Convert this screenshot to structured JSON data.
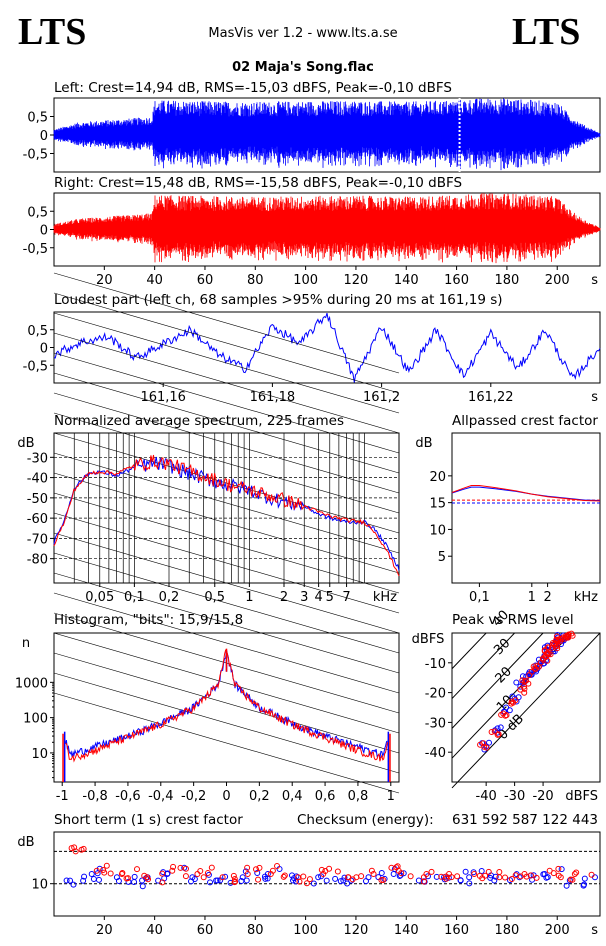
{
  "header": {
    "logo_left": "LTS",
    "logo_right": "LTS",
    "app_title": "MasVis ver 1.2 - www.lts.a.se",
    "file_name": "02 Maja's Song.flac"
  },
  "panels": {
    "left_wave": {
      "label": "Left: Crest=14,94 dB, RMS=-15,03 dBFS, Peak=-0,10 dBFS"
    },
    "right_wave": {
      "label": "Right: Crest=15,48 dB, RMS=-15,58 dBFS, Peak=-0,10 dBFS"
    },
    "loudest": {
      "label": "Loudest part (left  ch, 68 samples >95% during 20 ms at 161,19 s)"
    },
    "spectrum": {
      "label": "Normalized average spectrum, 225 frames"
    },
    "allpass": {
      "label": "Allpassed crest factor"
    },
    "histogram": {
      "label": "Histogram, \"bits\": 15,9/15,8"
    },
    "peakrms": {
      "label": "Peak vs RMS level"
    },
    "shortcrest": {
      "label": "Short term (1 s) crest factor"
    },
    "checksum": {
      "label": "Checksum (energy):",
      "value": "631 592 587 122 443"
    }
  },
  "colors": {
    "left": "#0000ff",
    "right": "#ff0000",
    "grid": "#000000"
  },
  "chart_data": [
    {
      "id": "left_wave",
      "type": "line",
      "title": "Left: Crest=14,94 dB, RMS=-15,03 dBFS, Peak=-0,10 dBFS",
      "xlabel": "s",
      "xlim": [
        0,
        217
      ],
      "ylim": [
        -1,
        1
      ],
      "yticks": [
        "0,5",
        "0",
        "-0,5"
      ],
      "ytick_values": [
        0.5,
        0,
        -0.5
      ],
      "marker_x": 161.19,
      "envelope": {
        "x": [
          0,
          10,
          20,
          30,
          39,
          40,
          60,
          80,
          100,
          120,
          140,
          160,
          170,
          180,
          200,
          205,
          210,
          217
        ],
        "amp": [
          0.15,
          0.35,
          0.4,
          0.45,
          0.5,
          0.95,
          0.92,
          0.9,
          0.92,
          0.93,
          0.9,
          0.95,
          1.0,
          1.0,
          0.9,
          0.55,
          0.3,
          0.05
        ]
      },
      "series": [
        {
          "name": "",
          "color": "#0000ff"
        }
      ]
    },
    {
      "id": "right_wave",
      "type": "line",
      "title": "Right: Crest=15,48 dB, RMS=-15,58 dBFS, Peak=-0,10 dBFS",
      "xlabel": "s",
      "xlim": [
        0,
        217
      ],
      "ylim": [
        -1,
        1
      ],
      "xticks": [
        20,
        40,
        60,
        80,
        100,
        120,
        140,
        160,
        180,
        200
      ],
      "yticks": [
        "0,5",
        "0",
        "-0,5"
      ],
      "ytick_values": [
        0.5,
        0,
        -0.5
      ],
      "envelope": {
        "x": [
          0,
          10,
          20,
          30,
          39,
          40,
          60,
          80,
          100,
          120,
          140,
          160,
          170,
          180,
          200,
          205,
          210,
          217
        ],
        "amp": [
          0.15,
          0.3,
          0.35,
          0.4,
          0.45,
          0.95,
          0.92,
          0.9,
          0.92,
          0.93,
          0.9,
          0.95,
          1.0,
          1.0,
          0.9,
          0.55,
          0.3,
          0.05
        ]
      },
      "series": [
        {
          "name": "",
          "color": "#ff0000"
        }
      ]
    },
    {
      "id": "loudest",
      "type": "line",
      "title": "Loudest part (left  ch, 68 samples >95% during 20 ms at 161,19 s)",
      "xlabel": "s",
      "xlim": [
        161.14,
        161.24
      ],
      "ylim": [
        -1,
        1
      ],
      "xticks": [
        "161,16",
        "161,18",
        "161,2",
        "161,22"
      ],
      "xtick_values": [
        161.16,
        161.18,
        161.2,
        161.22
      ],
      "yticks": [
        "0,5",
        "0",
        "-0,5"
      ],
      "ytick_values": [
        0.5,
        0,
        -0.5
      ],
      "x": [
        161.14,
        161.145,
        161.15,
        161.155,
        161.16,
        161.165,
        161.17,
        161.175,
        161.18,
        161.185,
        161.19,
        161.195,
        161.2,
        161.205,
        161.21,
        161.215,
        161.22,
        161.225,
        161.23,
        161.235,
        161.24
      ],
      "y": [
        -0.2,
        0.15,
        0.3,
        -0.3,
        0.1,
        0.5,
        -0.2,
        -0.6,
        0.6,
        0.1,
        0.95,
        -0.9,
        0.6,
        -0.7,
        0.5,
        -0.8,
        0.4,
        -0.6,
        0.5,
        -0.9,
        0.0
      ],
      "series": [
        {
          "name": "",
          "color": "#0000ff"
        }
      ]
    },
    {
      "id": "spectrum",
      "type": "line",
      "title": "Normalized average spectrum, 225 frames",
      "ylabel": "dB",
      "xlabel": "kHz",
      "xscale": "log",
      "xlim": [
        0.02,
        20
      ],
      "ylim": [
        -92,
        -18
      ],
      "xticks": [
        "0,05",
        "0,1",
        "0,2",
        "0,5",
        "1",
        "2",
        "3",
        "4",
        "5",
        "7"
      ],
      "xtick_values": [
        0.05,
        0.1,
        0.2,
        0.5,
        1,
        2,
        3,
        4,
        5,
        7
      ],
      "yticks": [
        "-30",
        "-40",
        "-50",
        "-60",
        "-70",
        "-80"
      ],
      "ytick_values": [
        -30,
        -40,
        -50,
        -60,
        -70,
        -80
      ],
      "x": [
        0.02,
        0.025,
        0.03,
        0.04,
        0.05,
        0.07,
        0.1,
        0.15,
        0.2,
        0.3,
        0.5,
        0.7,
        1,
        1.5,
        2,
        3,
        4,
        5,
        7,
        10,
        12,
        15,
        20
      ],
      "series": [
        {
          "name": "",
          "color": "#0000ff",
          "values": [
            -72,
            -60,
            -45,
            -38,
            -37,
            -39,
            -35,
            -33,
            -34,
            -38,
            -42,
            -44,
            -46,
            -50,
            -52,
            -54,
            -58,
            -60,
            -62,
            -62,
            -65,
            -72,
            -85
          ]
        },
        {
          "name": "",
          "color": "#ff0000",
          "values": [
            -73,
            -61,
            -46,
            -38,
            -37,
            -38,
            -34,
            -32,
            -33,
            -37,
            -41,
            -44,
            -46,
            -49,
            -51,
            -54,
            -57,
            -59,
            -61,
            -62,
            -66,
            -74,
            -88
          ]
        }
      ]
    },
    {
      "id": "allpass",
      "type": "line",
      "title": "Allpassed crest factor",
      "ylabel": "dB",
      "xlabel": "kHz",
      "xscale": "log",
      "xlim": [
        0.03,
        20
      ],
      "ylim": [
        0,
        28
      ],
      "xticks": [
        "0,1",
        "1",
        "2"
      ],
      "xtick_values": [
        0.1,
        1,
        2
      ],
      "yticks": [
        "20",
        "15",
        "10",
        "5"
      ],
      "ytick_values": [
        20,
        15,
        10,
        5
      ],
      "reference_lines": [
        14.94,
        15.48
      ],
      "x": [
        0.03,
        0.05,
        0.07,
        0.1,
        0.2,
        0.5,
        1,
        2,
        5,
        10,
        20
      ],
      "series": [
        {
          "name": "",
          "color": "#0000ff",
          "values": [
            16.8,
            17.5,
            17.9,
            17.9,
            17.6,
            17.1,
            16.6,
            16.2,
            15.8,
            15.5,
            15.4
          ]
        },
        {
          "name": "",
          "color": "#ff0000",
          "values": [
            16.9,
            17.7,
            18.2,
            18.2,
            17.8,
            17.2,
            16.6,
            16.1,
            15.7,
            15.4,
            15.3
          ]
        }
      ]
    },
    {
      "id": "histogram",
      "type": "line",
      "title": "Histogram, \"bits\": 15,9/15,8",
      "ylabel": "n",
      "yscale": "log",
      "ylim": [
        1.5,
        25000
      ],
      "xlim": [
        -1.05,
        1.05
      ],
      "xticks": [
        "-1",
        "-0,8",
        "-0,6",
        "-0,4",
        "-0,2",
        "0",
        "0,2",
        "0,4",
        "0,6",
        "0,8",
        "1"
      ],
      "xtick_values": [
        -1,
        -0.8,
        -0.6,
        -0.4,
        -0.2,
        0,
        0.2,
        0.4,
        0.6,
        0.8,
        1
      ],
      "yticks": [
        "1000",
        "100",
        "10"
      ],
      "ytick_values": [
        1000,
        100,
        10
      ],
      "x": [
        -1,
        -0.95,
        -0.8,
        -0.6,
        -0.4,
        -0.2,
        -0.05,
        0,
        0.05,
        0.2,
        0.4,
        0.6,
        0.8,
        0.95,
        1
      ],
      "series": [
        {
          "name": "",
          "color": "#0000ff",
          "values": [
            40,
            9,
            15,
            30,
            70,
            200,
            900,
            8000,
            900,
            200,
            70,
            30,
            15,
            9,
            40
          ]
        },
        {
          "name": "",
          "color": "#ff0000",
          "values": [
            35,
            7,
            12,
            28,
            65,
            190,
            850,
            9000,
            850,
            190,
            65,
            28,
            12,
            7,
            35
          ]
        }
      ]
    },
    {
      "id": "peakrms",
      "type": "scatter",
      "title": "Peak vs RMS level",
      "ylabel": "dBFS",
      "xlabel": "dBFS",
      "xlim": [
        -52,
        0
      ],
      "ylim": [
        -50,
        0
      ],
      "xticks": [
        "-40",
        "-30",
        "-20"
      ],
      "xtick_values": [
        -40,
        -30,
        -20
      ],
      "yticks": [
        "-10",
        "-20",
        "-30",
        "-40"
      ],
      "ytick_values": [
        -10,
        -20,
        -30,
        -40
      ],
      "diagonal_labels": [
        "40",
        "30",
        "20",
        "10",
        "0 dB"
      ],
      "diagonal_values": [
        40,
        30,
        20,
        10,
        0
      ],
      "series": [
        {
          "name": "",
          "color": "#0000ff",
          "x": [
            -40,
            -36,
            -33,
            -30,
            -28,
            -26,
            -24,
            -22,
            -21,
            -20,
            -19,
            -18,
            -17,
            -16,
            -15,
            -14,
            -13,
            -12
          ],
          "y": [
            -38,
            -32,
            -25,
            -22,
            -18,
            -16,
            -14,
            -12,
            -10,
            -9,
            -8,
            -6,
            -5,
            -4,
            -3,
            -2,
            -1.5,
            -1
          ]
        },
        {
          "name": "",
          "color": "#ff0000",
          "x": [
            -41,
            -37,
            -34,
            -31,
            -28,
            -26,
            -24,
            -22,
            -20,
            -19,
            -18,
            -17,
            -16,
            -15,
            -14,
            -13,
            -12,
            -11
          ],
          "y": [
            -37,
            -33,
            -27,
            -23,
            -19,
            -16,
            -13,
            -11,
            -9,
            -8,
            -7,
            -5,
            -4,
            -3,
            -2,
            -1.5,
            -1,
            -0.5
          ]
        }
      ]
    },
    {
      "id": "shortcrest",
      "type": "scatter",
      "title": "Short term (1 s) crest factor",
      "ylabel": "dB",
      "xlabel": "s",
      "xlim": [
        0,
        217
      ],
      "ylim": [
        0,
        26
      ],
      "xticks": [
        20,
        40,
        60,
        80,
        100,
        120,
        140,
        160,
        180,
        200
      ],
      "yticks": [
        "10"
      ],
      "ytick_values": [
        10
      ],
      "reference_lines": [
        10,
        20
      ],
      "series": [
        {
          "name": "",
          "color": "#0000ff",
          "x": [
            5,
            15,
            25,
            35,
            45,
            55,
            65,
            75,
            85,
            95,
            105,
            115,
            125,
            135,
            145,
            155,
            165,
            175,
            185,
            195,
            205,
            215
          ],
          "y": [
            11,
            13,
            12,
            11,
            13,
            12,
            11,
            12,
            13,
            11,
            12,
            11,
            12,
            13,
            11,
            12,
            12,
            11,
            12,
            13,
            11,
            12
          ]
        },
        {
          "name": "",
          "color": "#ff0000",
          "x": [
            7,
            17,
            27,
            37,
            47,
            57,
            67,
            77,
            87,
            97,
            107,
            117,
            127,
            137,
            147,
            157,
            167,
            177,
            187,
            197,
            207
          ],
          "y": [
            21,
            14,
            13,
            12,
            14,
            13,
            12,
            13,
            14,
            12,
            13,
            12,
            13,
            14,
            12,
            13,
            13,
            12,
            13,
            14,
            13
          ]
        }
      ]
    }
  ]
}
